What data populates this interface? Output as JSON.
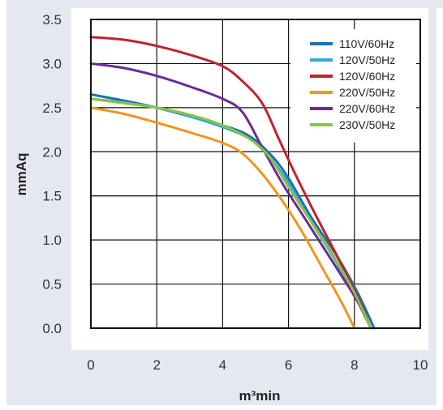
{
  "chart_data": {
    "type": "line",
    "title": "",
    "xlabel": "m³min",
    "ylabel": "mmAq",
    "xlim": [
      0,
      10
    ],
    "ylim": [
      0,
      3.5
    ],
    "x_ticks": [
      "0",
      "2",
      "4",
      "6",
      "8",
      "10"
    ],
    "y_ticks": [
      "0.0",
      "0.5",
      "1.0",
      "1.5",
      "2.0",
      "2.5",
      "3.0",
      "3.5"
    ],
    "grid": true,
    "legend_position": "top-right",
    "series": [
      {
        "name": "110V/60Hz",
        "color": "#1f6fb5",
        "x": [
          0,
          1,
          2,
          3,
          4,
          4.8,
          5.5,
          6,
          6.7,
          7.5,
          8.1,
          8.6
        ],
        "y": [
          2.65,
          2.58,
          2.5,
          2.4,
          2.3,
          2.18,
          1.95,
          1.7,
          1.25,
          0.8,
          0.4,
          0.0
        ]
      },
      {
        "name": "120V/50Hz",
        "color": "#35a9dc",
        "x": [
          0,
          1,
          2,
          3,
          4,
          4.8,
          5.4,
          6,
          6.7,
          7.4,
          8.0,
          8.5
        ],
        "y": [
          2.6,
          2.56,
          2.5,
          2.4,
          2.28,
          2.15,
          1.95,
          1.65,
          1.2,
          0.78,
          0.38,
          0.0
        ]
      },
      {
        "name": "120V/60Hz",
        "color": "#c0222f",
        "x": [
          0,
          1,
          2,
          3,
          4,
          4.6,
          5.2,
          5.7,
          6.2,
          6.8,
          7.5,
          8.1,
          8.5
        ],
        "y": [
          3.3,
          3.27,
          3.2,
          3.1,
          2.97,
          2.8,
          2.55,
          2.15,
          1.75,
          1.3,
          0.8,
          0.35,
          0.0
        ]
      },
      {
        "name": "220V/50Hz",
        "color": "#f1951f",
        "x": [
          0,
          1,
          2,
          3,
          4,
          4.6,
          5.2,
          5.8,
          6.4,
          7.0,
          7.6,
          8.0
        ],
        "y": [
          2.5,
          2.43,
          2.33,
          2.22,
          2.1,
          1.98,
          1.75,
          1.45,
          1.1,
          0.7,
          0.3,
          0.0
        ]
      },
      {
        "name": "220V/60Hz",
        "color": "#6a2b96",
        "x": [
          0,
          1,
          2,
          3,
          4,
          4.6,
          5.2,
          5.8,
          6.4,
          7.0,
          7.6,
          8.1,
          8.5
        ],
        "y": [
          3.0,
          2.95,
          2.86,
          2.74,
          2.6,
          2.45,
          2.05,
          1.65,
          1.3,
          0.95,
          0.6,
          0.3,
          0.0
        ]
      },
      {
        "name": "230V/50Hz",
        "color": "#8cc43d",
        "x": [
          0,
          1,
          2,
          3,
          4,
          4.8,
          5.4,
          6,
          6.7,
          7.4,
          8.0,
          8.5
        ],
        "y": [
          2.6,
          2.55,
          2.5,
          2.42,
          2.3,
          2.15,
          1.95,
          1.6,
          1.2,
          0.8,
          0.4,
          0.0
        ]
      }
    ]
  }
}
